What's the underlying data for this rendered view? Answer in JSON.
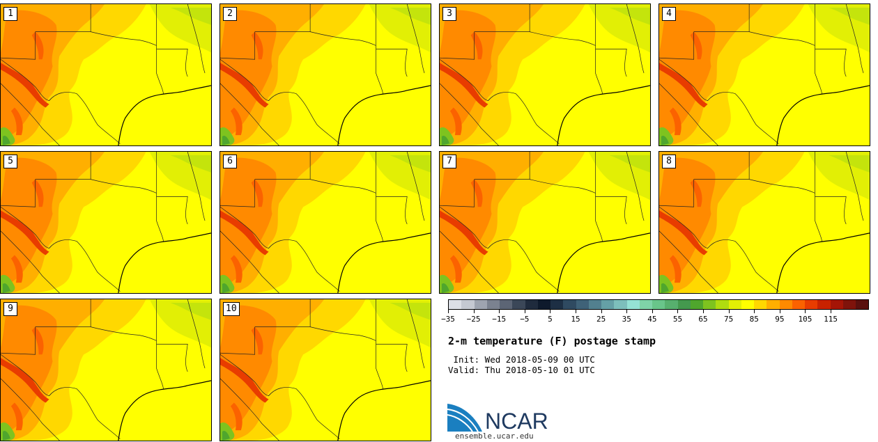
{
  "panels": [
    {
      "label": "1"
    },
    {
      "label": "2"
    },
    {
      "label": "3"
    },
    {
      "label": "4"
    },
    {
      "label": "5"
    },
    {
      "label": "6"
    },
    {
      "label": "7"
    },
    {
      "label": "8"
    },
    {
      "label": "9"
    },
    {
      "label": "10"
    }
  ],
  "colorbar": {
    "colors": [
      "#dcdfe6",
      "#c5c9d2",
      "#9ea4b0",
      "#7b8290",
      "#5c6575",
      "#3b4758",
      "#1f2b3d",
      "#0e1a2c",
      "#1d2f44",
      "#2f4a61",
      "#3f6278",
      "#52808f",
      "#65a0a6",
      "#7dbfbc",
      "#95e2d5",
      "#7fd3a8",
      "#69c58a",
      "#57b06e",
      "#44994e",
      "#4fa62d",
      "#7ec31f",
      "#b0dc10",
      "#e2ef05",
      "#ffff00",
      "#ffd800",
      "#ffaf00",
      "#ff8a00",
      "#fb6200",
      "#e83c00",
      "#c92200",
      "#a51506",
      "#7f130b",
      "#5a100e"
    ],
    "tick_labels": [
      "−35",
      "−25",
      "−15",
      "−5",
      "5",
      "15",
      "25",
      "35",
      "45",
      "55",
      "65",
      "75",
      "85",
      "95",
      "105",
      "115"
    ]
  },
  "title": "2-m temperature (F) postage stamp",
  "init": " Init: Wed 2018-05-09 00 UTC",
  "valid": "Valid: Thu 2018-05-10 01 UTC",
  "logo": {
    "text": "NCAR",
    "url": "ensemble.ucar.edu",
    "color": "#1f3a60",
    "swoosh_color": "#1a7fc0"
  }
}
